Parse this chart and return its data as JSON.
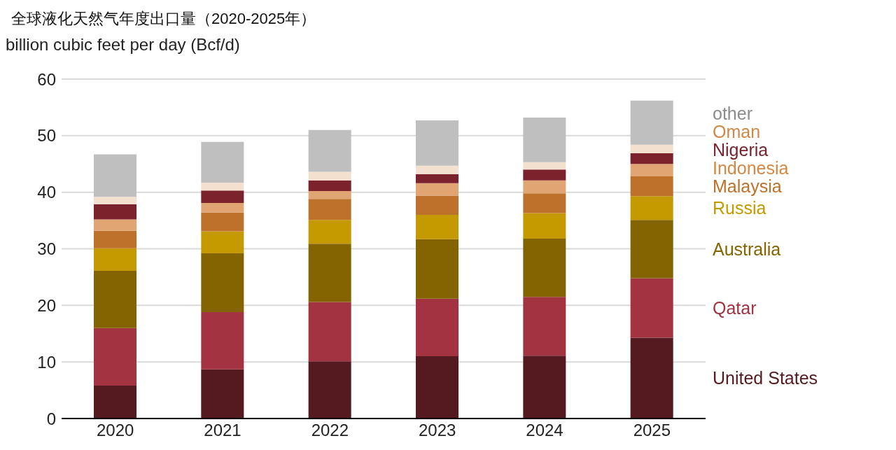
{
  "chart_data": {
    "type": "bar",
    "title": "全球液化天然气年度出口量（2020-2025年）",
    "ylabel": "billion cubic feet per day (Bcf/d)",
    "categories": [
      "2020",
      "2021",
      "2022",
      "2023",
      "2024",
      "2025"
    ],
    "stacked": true,
    "ylim": [
      0,
      60
    ],
    "yticks": [
      0,
      10,
      20,
      30,
      40,
      50,
      60
    ],
    "grid": "y",
    "series": [
      {
        "name": "United States",
        "color": "#541a20",
        "values": [
          5.8,
          8.7,
          10.1,
          11.0,
          11.1,
          14.3
        ]
      },
      {
        "name": "Qatar",
        "color": "#a33340",
        "values": [
          10.2,
          10.1,
          10.5,
          10.2,
          10.4,
          10.5
        ]
      },
      {
        "name": "Australia",
        "color": "#846400",
        "values": [
          10.1,
          10.4,
          10.3,
          10.5,
          10.3,
          10.3
        ]
      },
      {
        "name": "Russia",
        "color": "#c49a00",
        "values": [
          4.0,
          3.9,
          4.2,
          4.3,
          4.5,
          4.2
        ]
      },
      {
        "name": "Malaysia",
        "color": "#bd712a",
        "values": [
          3.1,
          3.3,
          3.7,
          3.4,
          3.5,
          3.5
        ]
      },
      {
        "name": "Indonesia",
        "color": "#e0a572",
        "values": [
          2.0,
          1.7,
          1.4,
          2.2,
          2.3,
          2.2
        ]
      },
      {
        "name": "Nigeria",
        "color": "#7b222c",
        "values": [
          2.7,
          2.2,
          1.9,
          1.6,
          1.9,
          1.9
        ]
      },
      {
        "name": "Oman",
        "color": "#f3e0cf",
        "values": [
          1.3,
          1.4,
          1.5,
          1.5,
          1.3,
          1.5
        ]
      },
      {
        "name": "other",
        "color": "#bfbfbf",
        "values": [
          7.5,
          7.2,
          7.4,
          8.0,
          7.9,
          7.8
        ]
      }
    ]
  }
}
